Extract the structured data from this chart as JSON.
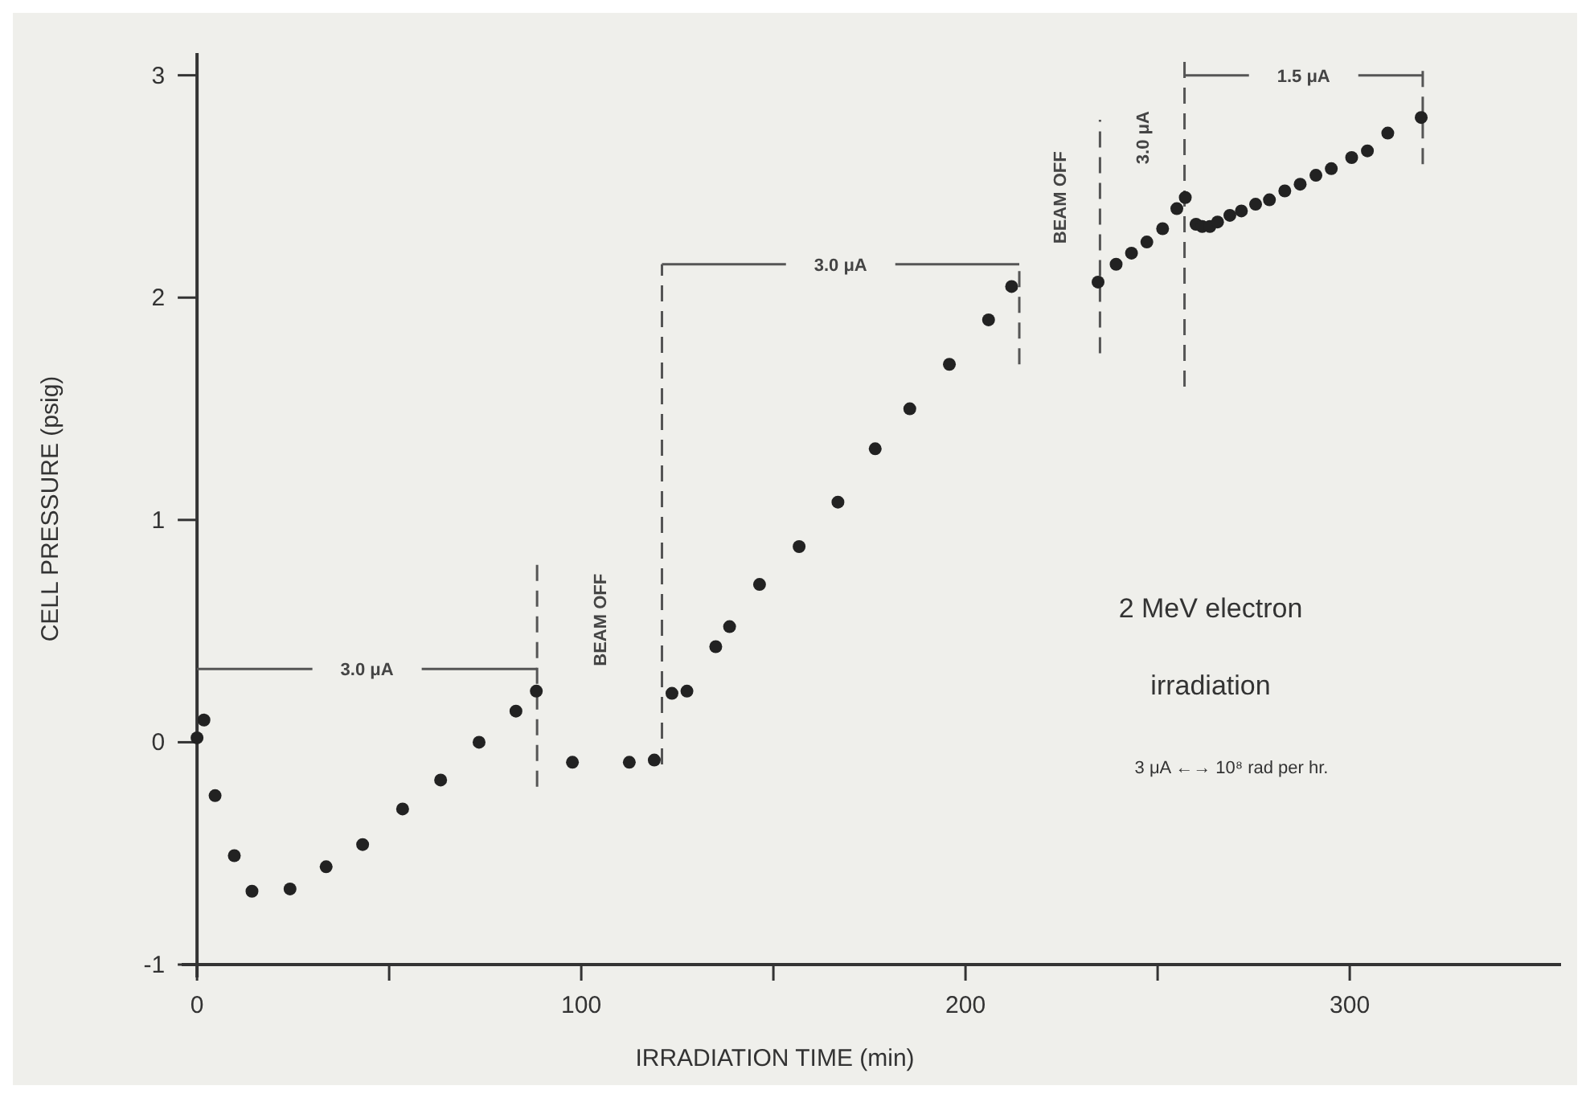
{
  "chart_data": {
    "type": "scatter",
    "xlabel": "IRRADIATION TIME (min)",
    "ylabel": "CELL PRESSURE (psig)",
    "xlim": [
      -4,
      355
    ],
    "xticks": [
      0,
      {
        "value": 50,
        "label": null
      },
      100,
      {
        "value": 150,
        "label": null
      },
      200,
      {
        "value": 250,
        "label": null
      },
      300
    ],
    "ylim": [
      -1,
      3.1
    ],
    "yticks": [
      -1,
      0,
      1,
      2,
      3
    ],
    "marker": "circle",
    "series": [
      {
        "color": "#222222",
        "x": [
          0,
          1.8,
          4.7,
          9.7,
          14.3,
          24.2,
          33.6,
          43.1,
          53.5,
          63.4,
          73.4,
          83,
          88.3,
          97.7,
          112.5,
          119,
          123.6,
          127.5,
          135,
          138.6,
          146.4,
          156.7,
          166.8,
          176.5,
          185.5,
          195.8,
          206,
          212,
          234.5,
          239.2,
          243.2,
          247.2,
          251.3,
          255,
          257.2,
          260,
          261.6,
          263.6,
          265.6,
          268.8,
          271.8,
          275.5,
          279.1,
          283.1,
          287.1,
          291.2,
          295.2,
          300.5,
          304.6,
          309.9,
          318.6
        ],
        "values": [
          0.02,
          0.1,
          -0.24,
          -0.51,
          -0.67,
          -0.66,
          -0.56,
          -0.46,
          -0.3,
          -0.17,
          0,
          0.14,
          0.23,
          -0.09,
          -0.09,
          -0.08,
          0.22,
          0.23,
          0.43,
          0.52,
          0.71,
          0.88,
          1.08,
          1.32,
          1.5,
          1.7,
          1.9,
          2.05,
          2.07,
          2.15,
          2.2,
          2.25,
          2.31,
          2.4,
          2.45,
          2.33,
          2.32,
          2.32,
          2.34,
          2.37,
          2.39,
          2.42,
          2.44,
          2.48,
          2.51,
          2.55,
          2.58,
          2.63,
          2.66,
          2.74,
          2.81
        ]
      }
    ],
    "ref_lines": [
      {
        "axis": "x",
        "value": 88.5,
        "line_style": "dashed"
      },
      {
        "axis": "x",
        "value": 121,
        "line_style": "dashed"
      },
      {
        "axis": "x",
        "value": 214,
        "line_style": "dashed"
      },
      {
        "axis": "x",
        "value": 235,
        "line_style": "dashed"
      },
      {
        "axis": "x",
        "value": 257,
        "line_style": "dashed"
      },
      {
        "axis": "x",
        "value": 319,
        "line_style": "dashed"
      }
    ],
    "annotations": [
      "3.0 μA",
      "BEAM OFF",
      "3.0 μA",
      "BEAM OFF",
      "3.0 μA",
      "1.5 μA",
      "2 MeV electron",
      "irradiation",
      "3 μA ←→ 10⁸ rad per hr."
    ]
  }
}
